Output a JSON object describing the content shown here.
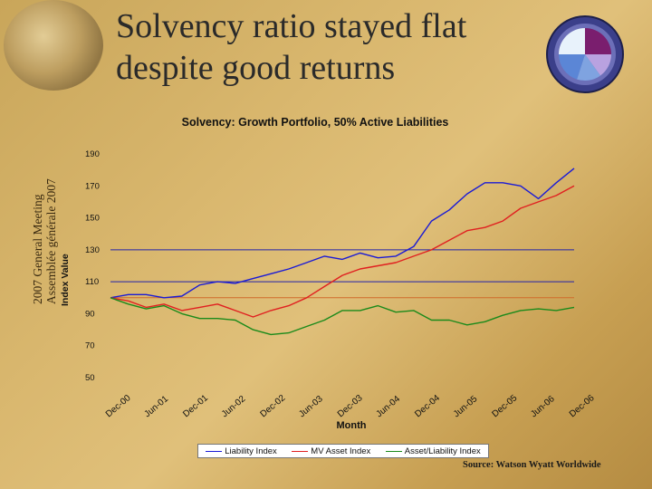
{
  "slide": {
    "title_line1": "Solvency ratio stayed flat",
    "title_line2": "despite good returns",
    "side_line1": "2007 General Meeting",
    "side_line2": "Assemblée générale 2007",
    "source": "Source: Watson Wyatt Worldwide"
  },
  "colors": {
    "liability": "#1a1ad6",
    "asset": "#e02020",
    "ratio": "#1a8a1a",
    "gridline": "#2222aa",
    "reference": "#d06a2a"
  },
  "pie_badge": {
    "slices": [
      {
        "value": 25,
        "color": "#7a1e6e"
      },
      {
        "value": 15,
        "color": "#b9a2e0"
      },
      {
        "value": 15,
        "color": "#7fa3e0"
      },
      {
        "value": 20,
        "color": "#5b86d6"
      },
      {
        "value": 25,
        "color": "#e8f2fb"
      }
    ]
  },
  "chart_data": {
    "type": "line",
    "title": "Solvency: Growth Portfolio, 50% Active Liabilities",
    "xlabel": "Month",
    "ylabel": "Index Value",
    "ylim": [
      50,
      190
    ],
    "yticks": [
      50,
      70,
      90,
      110,
      130,
      150,
      170,
      190
    ],
    "gridlines_at": [
      110,
      130
    ],
    "reference_line": 100,
    "xticks": [
      "Dec-00",
      "Jun-01",
      "Dec-01",
      "Jun-02",
      "Dec-02",
      "Jun-03",
      "Dec-03",
      "Jun-04",
      "Dec-04",
      "Jun-05",
      "Dec-05",
      "Jun-06",
      "Dec-06"
    ],
    "legend_position": "bottom",
    "series": [
      {
        "name": "Liability Index",
        "values": [
          100,
          102,
          102,
          100,
          101,
          108,
          110,
          109,
          112,
          115,
          118,
          122,
          126,
          124,
          128,
          125,
          126,
          132,
          148,
          155,
          165,
          172,
          172,
          170,
          162,
          172,
          181
        ]
      },
      {
        "name": "MV Asset Index",
        "values": [
          100,
          98,
          94,
          96,
          92,
          94,
          96,
          92,
          88,
          92,
          95,
          100,
          107,
          114,
          118,
          120,
          122,
          126,
          130,
          136,
          142,
          144,
          148,
          156,
          160,
          164,
          170
        ]
      },
      {
        "name": "Asset/Liability Index",
        "values": [
          100,
          96,
          93,
          95,
          90,
          87,
          87,
          86,
          80,
          77,
          78,
          82,
          86,
          92,
          92,
          95,
          91,
          92,
          86,
          86,
          83,
          85,
          89,
          92,
          93,
          92,
          94
        ]
      }
    ]
  }
}
